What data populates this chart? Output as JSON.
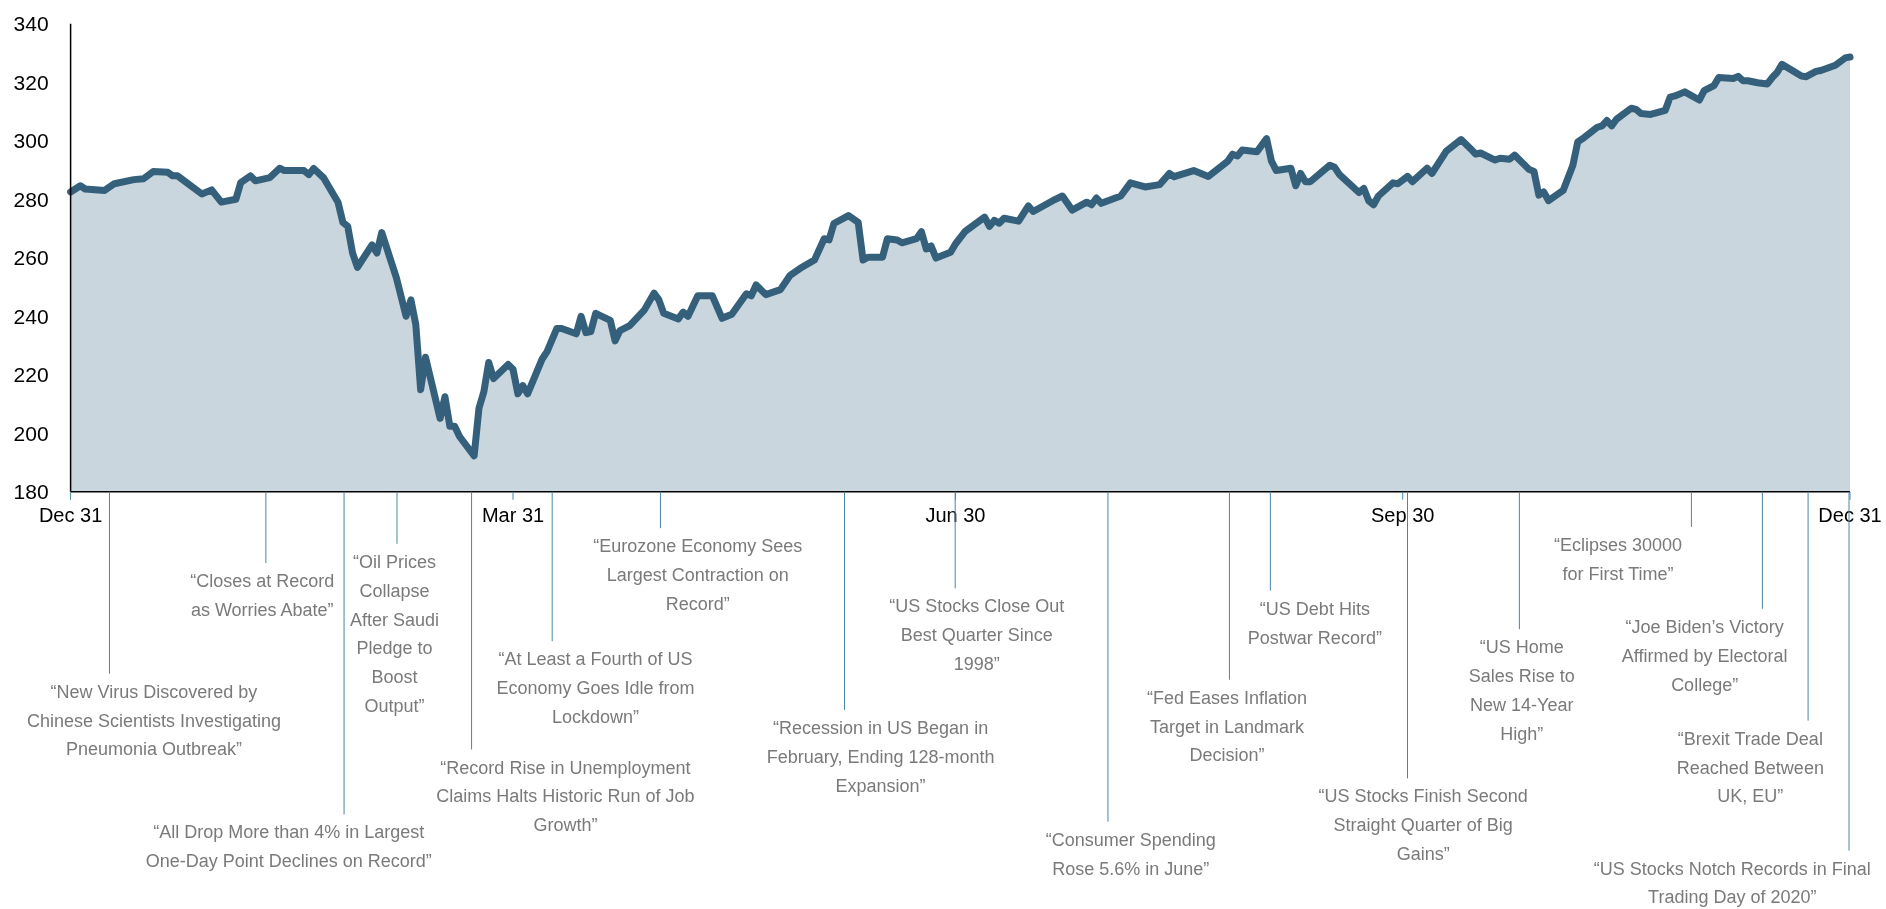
{
  "chart_data": {
    "type": "area",
    "color": "#35607c",
    "x": [
      "2019-12-31",
      "2020-01-02",
      "2020-01-03",
      "2020-01-07",
      "2020-01-09",
      "2020-01-13",
      "2020-01-15",
      "2020-01-17",
      "2020-01-20",
      "2020-01-21",
      "2020-01-22",
      "2020-01-27",
      "2020-01-29",
      "2020-01-31",
      "2020-02-03",
      "2020-02-04",
      "2020-02-06",
      "2020-02-07",
      "2020-02-10",
      "2020-02-12",
      "2020-02-13",
      "2020-02-17",
      "2020-02-18",
      "2020-02-19",
      "2020-02-21",
      "2020-02-24",
      "2020-02-25",
      "2020-02-26",
      "2020-02-27",
      "2020-02-28",
      "2020-03-02",
      "2020-03-03",
      "2020-03-04",
      "2020-03-07",
      "2020-03-09",
      "2020-03-10",
      "2020-03-11",
      "2020-03-12",
      "2020-03-13",
      "2020-03-16",
      "2020-03-17",
      "2020-03-18",
      "2020-03-19",
      "2020-03-20",
      "2020-03-23",
      "2020-03-24",
      "2020-03-25",
      "2020-03-26",
      "2020-03-27",
      "2020-03-30",
      "2020-03-31",
      "2020-04-01",
      "2020-04-02",
      "2020-04-03",
      "2020-04-06",
      "2020-04-07",
      "2020-04-09",
      "2020-04-10",
      "2020-04-13",
      "2020-04-14",
      "2020-04-15",
      "2020-04-16",
      "2020-04-17",
      "2020-04-20",
      "2020-04-21",
      "2020-04-22",
      "2020-04-24",
      "2020-04-27",
      "2020-04-29",
      "2020-04-30",
      "2020-05-01",
      "2020-05-04",
      "2020-05-05",
      "2020-05-06",
      "2020-05-08",
      "2020-05-11",
      "2020-05-13",
      "2020-05-15",
      "2020-05-18",
      "2020-05-19",
      "2020-05-20",
      "2020-05-22",
      "2020-05-25",
      "2020-05-27",
      "2020-05-29",
      "2020-06-01",
      "2020-06-03",
      "2020-06-04",
      "2020-06-05",
      "2020-06-08",
      "2020-06-10",
      "2020-06-11",
      "2020-06-12",
      "2020-06-15",
      "2020-06-16",
      "2020-06-18",
      "2020-06-19",
      "2020-06-22",
      "2020-06-23",
      "2020-06-24",
      "2020-06-25",
      "2020-06-26",
      "2020-06-29",
      "2020-06-30",
      "2020-07-02",
      "2020-07-06",
      "2020-07-07",
      "2020-07-08",
      "2020-07-09",
      "2020-07-10",
      "2020-07-13",
      "2020-07-15",
      "2020-07-16",
      "2020-07-20",
      "2020-07-22",
      "2020-07-24",
      "2020-07-27",
      "2020-07-28",
      "2020-07-29",
      "2020-07-30",
      "2020-08-03",
      "2020-08-05",
      "2020-08-08",
      "2020-08-11",
      "2020-08-13",
      "2020-08-14",
      "2020-08-18",
      "2020-08-21",
      "2020-08-25",
      "2020-08-26",
      "2020-08-27",
      "2020-08-28",
      "2020-08-31",
      "2020-09-02",
      "2020-09-03",
      "2020-09-04",
      "2020-09-07",
      "2020-09-08",
      "2020-09-09",
      "2020-09-10",
      "2020-09-11",
      "2020-09-15",
      "2020-09-16",
      "2020-09-17",
      "2020-09-21",
      "2020-09-22",
      "2020-09-23",
      "2020-09-24",
      "2020-09-25",
      "2020-09-28",
      "2020-09-29",
      "2020-10-01",
      "2020-10-02",
      "2020-10-05",
      "2020-10-06",
      "2020-10-09",
      "2020-10-12",
      "2020-10-14",
      "2020-10-15",
      "2020-10-16",
      "2020-10-19",
      "2020-10-20",
      "2020-10-22",
      "2020-10-23",
      "2020-10-26",
      "2020-10-27",
      "2020-10-28",
      "2020-10-29",
      "2020-10-30",
      "2020-11-02",
      "2020-11-04",
      "2020-11-05",
      "2020-11-06",
      "2020-11-09",
      "2020-11-10",
      "2020-11-11",
      "2020-11-12",
      "2020-11-13",
      "2020-11-16",
      "2020-11-17",
      "2020-11-18",
      "2020-11-20",
      "2020-11-23",
      "2020-11-24",
      "2020-11-25",
      "2020-11-27",
      "2020-11-30",
      "2020-12-01",
      "2020-12-03",
      "2020-12-04",
      "2020-12-07",
      "2020-12-08",
      "2020-12-09",
      "2020-12-10",
      "2020-12-12",
      "2020-12-14",
      "2020-12-15",
      "2020-12-16",
      "2020-12-17",
      "2020-12-21",
      "2020-12-22",
      "2020-12-24",
      "2020-12-25",
      "2020-12-28",
      "2020-12-30",
      "2020-12-31"
    ],
    "values": [
      282.5,
      284.6,
      283.5,
      283,
      285.3,
      286.7,
      287,
      289.5,
      289.2,
      288,
      288,
      281.8,
      283.2,
      279,
      280,
      285.7,
      288,
      286.3,
      287.4,
      290.6,
      289.8,
      289.8,
      288.4,
      290.5,
      287.4,
      279,
      272.1,
      270.7,
      261.6,
      256.7,
      264.4,
      261.6,
      268.6,
      253.2,
      240,
      245.6,
      237.2,
      214.9,
      226,
      205.1,
      212.5,
      202.4,
      202.4,
      198.9,
      192.3,
      208.6,
      214.2,
      224.2,
      218.7,
      223.5,
      221.9,
      213.5,
      216.3,
      213.5,
      225.4,
      227.9,
      235.8,
      235.8,
      234,
      240,
      234.4,
      234.8,
      241,
      238.6,
      231.6,
      235.1,
      236.8,
      242.1,
      247.9,
      245.6,
      241,
      239.1,
      241.4,
      240,
      247,
      247,
      239.3,
      240.7,
      247.7,
      247,
      250.7,
      247.4,
      249.1,
      254,
      256.3,
      259.2,
      266.5,
      266.1,
      271.7,
      274.4,
      272.1,
      259.2,
      260.2,
      260.2,
      266.5,
      266.1,
      265.1,
      266.5,
      268.9,
      263,
      264,
      259.9,
      261.9,
      264.7,
      269,
      273.9,
      270.7,
      272.8,
      271.8,
      273.5,
      272.5,
      277.7,
      275.8,
      279.5,
      281.1,
      276.3,
      279,
      278.1,
      280.4,
      278.6,
      281.1,
      285.6,
      284.2,
      285,
      288.8,
      287.7,
      289.8,
      287.8,
      293,
      295.4,
      294.8,
      296.8,
      296.2,
      300.7,
      293,
      289.8,
      290.6,
      284.6,
      288.8,
      286,
      286,
      291.6,
      290.9,
      288.4,
      282.3,
      283.7,
      279.5,
      278.1,
      281.1,
      285.6,
      285.3,
      287.8,
      286,
      290.6,
      288.8,
      296.5,
      300.4,
      297.2,
      295.4,
      295.8,
      293.4,
      294,
      293.7,
      295.1,
      290.2,
      289.5,
      281.4,
      282.5,
      279.5,
      283,
      291.6,
      299.6,
      300.7,
      304.6,
      305.1,
      306.9,
      305.1,
      307.4,
      311.1,
      310.7,
      309.3,
      309,
      310.4,
      314.9,
      315.3,
      316.7,
      313.9,
      317.1,
      318.8,
      321.6,
      321.3,
      322,
      320.5,
      320.5,
      319.8,
      319.4,
      321.6,
      323.3,
      326.1,
      322.1,
      321.9,
      323.7,
      324,
      325.8,
      328.3,
      328.6
    ],
    "xlim": [
      "2019-12-31",
      "2020-12-31"
    ],
    "xticks": [
      {
        "value": "2019-12-31",
        "label": "Dec 31"
      },
      {
        "value": "2020-03-31",
        "label": "Mar 31"
      },
      {
        "value": "2020-06-30",
        "label": "Jun 30"
      },
      {
        "value": "2020-09-30",
        "label": "Sep 30"
      },
      {
        "value": "2020-12-31",
        "label": "Dec 31"
      }
    ],
    "ylim": [
      180,
      340
    ],
    "yticks": [
      180,
      200,
      220,
      240,
      260,
      280,
      300,
      320,
      340
    ],
    "annotations": [
      "“New Virus Discovered by Chinese Scientists Investigating Pneumonia Outbreak”",
      "“Closes at Record as Worries Abate”",
      "“All Drop More than 4% in Largest One-Day Point Declines on Record”",
      "“Oil Prices Collapse After Saudi Pledge to Boost Output”",
      "“Record Rise in Unemployment Claims Halts Historic Run of Job Growth”",
      "“At Least a Fourth of US Economy Goes Idle from Lockdown”",
      "“Eurozone Economy Sees Largest Contraction on Record”",
      "“Recession in US Began in February, Ending 128-month Expansion”",
      "“US Stocks Close Out Best Quarter Since 1998”",
      "“Consumer Spending Rose 5.6% in June”",
      "“Fed Eases Inflation Target in Landmark Decision”",
      "“US Debt Hits Postwar Record”",
      "“US Stocks Finish Second Straight Quarter of Big Gains”",
      "“US Home Sales Rise to New 14-Year High”",
      "“Eclipses 30000 for First Time”",
      "“Joe Biden’s Victory Affirmed by Electoral College”",
      "“Brexit Trade Deal Reached Between UK, EU”",
      "“US Stocks Notch Records in Final Trading Day of 2020”"
    ]
  }
}
